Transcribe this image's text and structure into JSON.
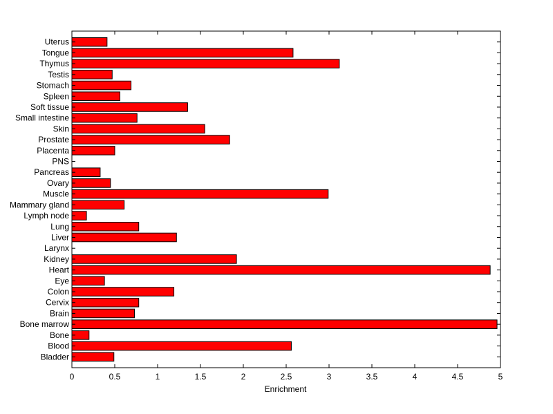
{
  "chart_data": {
    "type": "bar",
    "orientation": "horizontal",
    "categories": [
      "Bladder",
      "Blood",
      "Bone",
      "Bone marrow",
      "Brain",
      "Cervix",
      "Colon",
      "Eye",
      "Heart",
      "Kidney",
      "Larynx",
      "Liver",
      "Lung",
      "Lymph node",
      "Mammary gland",
      "Muscle",
      "Ovary",
      "Pancreas",
      "PNS",
      "Placenta",
      "Prostate",
      "Skin",
      "Small intestine",
      "Soft tissue",
      "Spleen",
      "Stomach",
      "Testis",
      "Thymus",
      "Tongue",
      "Uterus"
    ],
    "values": [
      0.49,
      2.56,
      0.2,
      4.96,
      0.73,
      0.78,
      1.19,
      0.38,
      4.88,
      1.92,
      0.0,
      1.22,
      0.78,
      0.17,
      0.61,
      2.99,
      0.45,
      0.33,
      0.0,
      0.5,
      1.84,
      1.55,
      0.76,
      1.35,
      0.56,
      0.69,
      0.47,
      3.12,
      2.58,
      0.41
    ],
    "title": "",
    "xlabel": "Enrichment",
    "ylabel": "",
    "xlim": [
      0,
      5
    ],
    "xticks": [
      "0",
      "0.5",
      "1",
      "1.5",
      "2",
      "2.5",
      "3",
      "3.5",
      "4",
      "4.5",
      "5"
    ],
    "grid": false,
    "bar_color": "#ff0000",
    "edge_color": "#000000"
  }
}
